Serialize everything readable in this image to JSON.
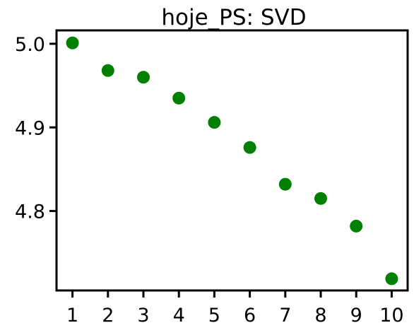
{
  "chart_data": {
    "type": "scatter",
    "title": "hoje_PS: SVD",
    "xlabel": "",
    "ylabel": "",
    "x": [
      1,
      2,
      3,
      4,
      5,
      6,
      7,
      8,
      9,
      10
    ],
    "y": [
      5.001,
      4.968,
      4.96,
      4.935,
      4.906,
      4.876,
      4.832,
      4.815,
      4.782,
      4.719
    ],
    "xlim": [
      0.55,
      10.45
    ],
    "ylim": [
      4.705,
      5.016
    ],
    "xticks": [
      1,
      2,
      3,
      4,
      5,
      6,
      7,
      8,
      9,
      10
    ],
    "xtick_labels": [
      "1",
      "2",
      "3",
      "4",
      "5",
      "6",
      "7",
      "8",
      "9",
      "10"
    ],
    "yticks": [
      4.8,
      4.9,
      5.0
    ],
    "ytick_labels": [
      "4.8",
      "4.9",
      "5.0"
    ],
    "grid": false,
    "marker_color": "#008000"
  }
}
